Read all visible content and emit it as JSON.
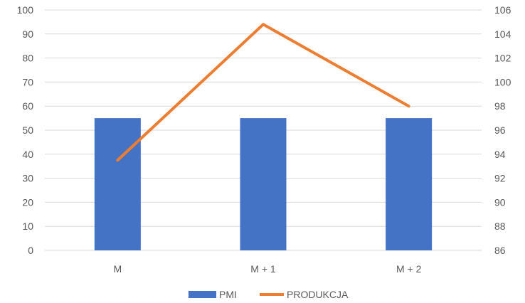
{
  "chart_data": {
    "type": "bar",
    "categories": [
      "M",
      "M + 1",
      "M + 2"
    ],
    "series": [
      {
        "name": "PMI",
        "type": "bar",
        "axis": "left",
        "values": [
          55,
          55,
          55
        ]
      },
      {
        "name": "PRODUKCJA",
        "type": "line",
        "axis": "right",
        "values": [
          93.5,
          104.8,
          98.0
        ]
      }
    ],
    "y_left": {
      "ylim": [
        0,
        100
      ],
      "ticks": [
        "0",
        "10",
        "20",
        "30",
        "40",
        "50",
        "60",
        "70",
        "80",
        "90",
        "100"
      ]
    },
    "y_right": {
      "ylim": [
        86,
        106
      ],
      "ticks": [
        "86",
        "88",
        "90",
        "92",
        "94",
        "96",
        "98",
        "100",
        "102",
        "104",
        "106"
      ]
    },
    "grid": true,
    "legend_position": "bottom",
    "colors": {
      "PMI": "#4472c4",
      "PRODUKCJA": "#ed7d31",
      "grid": "#d9d9d9",
      "text": "#595959"
    }
  }
}
